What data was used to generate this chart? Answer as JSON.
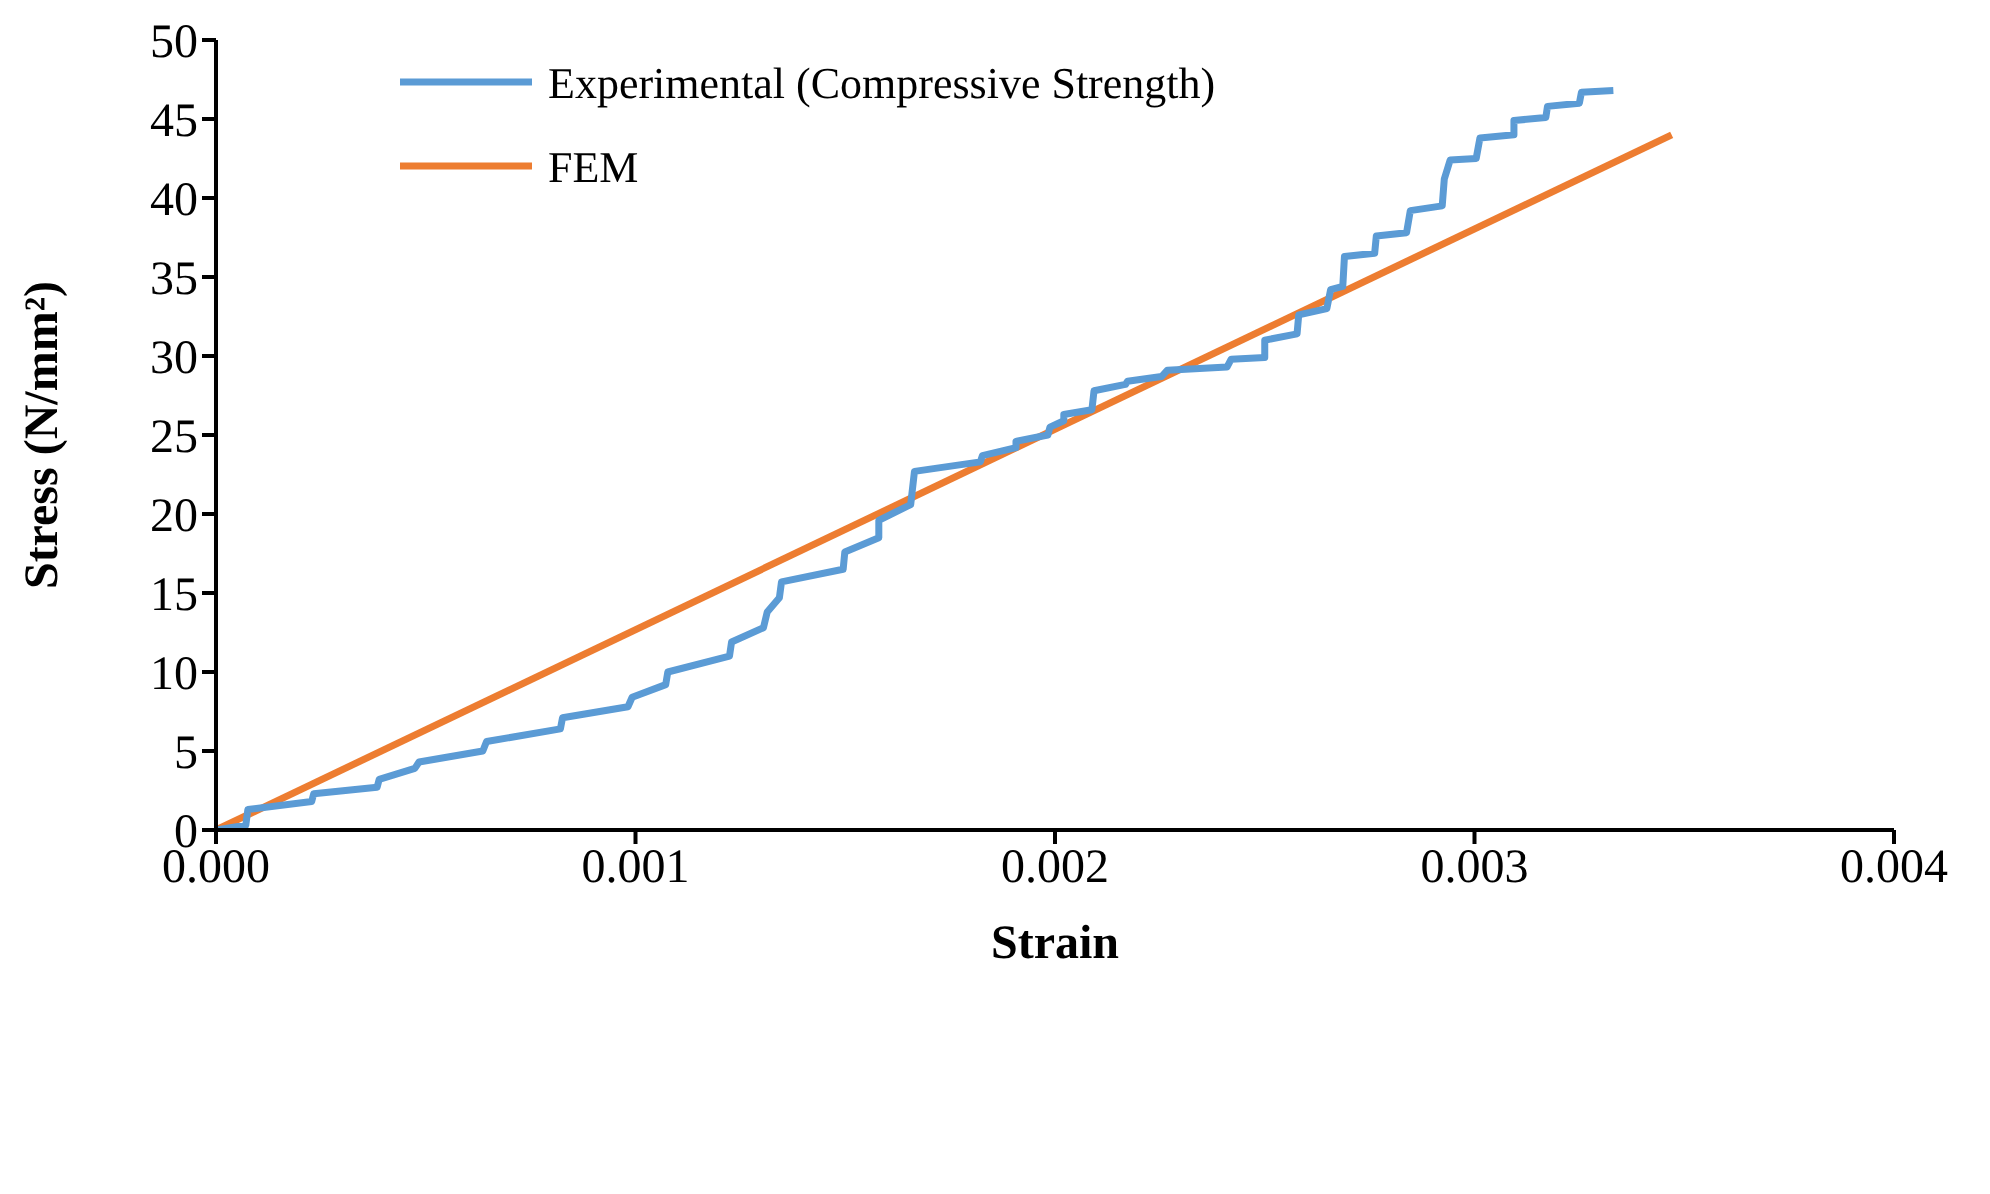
{
  "chart_data": {
    "type": "line",
    "xlabel": "Strain",
    "ylabel": "Stress (N/mm²)",
    "xlim": [
      0,
      0.004
    ],
    "xticks": [
      {
        "value": 0,
        "label": "0.000"
      },
      {
        "value": 0.001,
        "label": "0.001"
      },
      {
        "value": 0.002,
        "label": "0.002"
      },
      {
        "value": 0.003,
        "label": "0.003"
      },
      {
        "value": 0.004,
        "label": "0.004"
      }
    ],
    "ylim": [
      0,
      50
    ],
    "yticks": [
      0,
      5,
      10,
      15,
      20,
      25,
      30,
      35,
      40,
      45,
      50
    ],
    "grid": false,
    "legend": "top left",
    "marker": "none",
    "line_style": "solid",
    "series": [
      {
        "name": "FEM",
        "color": "#ed7d31",
        "x": [
          0,
          0.00347
        ],
        "values": [
          0,
          44.0
        ]
      },
      {
        "name": "Experimental (Compressive Strength)",
        "color": "#5b9bd5",
        "x": [
          0,
          7.1e-05,
          7.6e-05,
          0.000228,
          0.000233,
          0.000384,
          0.000389,
          0.000474,
          0.000484,
          0.000636,
          0.000645,
          0.000821,
          0.000826,
          0.000982,
          0.000992,
          0.001072,
          0.001077,
          0.001224,
          0.001229,
          0.001305,
          0.001314,
          0.001343,
          0.001348,
          0.001495,
          0.001499,
          0.00158,
          0.00158,
          0.001656,
          0.001665,
          0.001822,
          0.001827,
          0.001907,
          0.001907,
          0.001983,
          0.001988,
          0.002021,
          0.002021,
          0.002088,
          0.002093,
          0.002168,
          0.002173,
          0.002254,
          0.002268,
          0.00241,
          0.00242,
          0.0025,
          0.0025,
          0.002577,
          0.002581,
          0.002648,
          0.002657,
          0.002686,
          0.00269,
          0.002762,
          0.002766,
          0.002838,
          0.002847,
          0.002923,
          0.002928,
          0.002942,
          0.003004,
          0.003013,
          0.003094,
          0.003094,
          0.00317,
          0.003174,
          0.00325,
          0.003255,
          0.003331
        ],
        "values": [
          0,
          0.3,
          1.3,
          1.8,
          2.3,
          2.7,
          3.2,
          3.9,
          4.3,
          5.0,
          5.6,
          6.4,
          7.1,
          7.8,
          8.4,
          9.2,
          10.0,
          11.0,
          11.9,
          12.8,
          13.8,
          14.7,
          15.7,
          16.5,
          17.6,
          18.5,
          19.6,
          20.6,
          22.7,
          23.3,
          23.7,
          24.2,
          24.6,
          25.0,
          25.5,
          25.9,
          26.3,
          26.6,
          27.8,
          28.2,
          28.4,
          28.7,
          29.1,
          29.3,
          29.8,
          29.9,
          31.0,
          31.4,
          32.6,
          33.0,
          34.2,
          34.4,
          36.3,
          36.5,
          37.6,
          37.8,
          39.2,
          39.5,
          41.2,
          42.4,
          42.5,
          43.8,
          44.0,
          44.9,
          45.1,
          45.8,
          46.0,
          46.7,
          46.8
        ]
      }
    ]
  }
}
